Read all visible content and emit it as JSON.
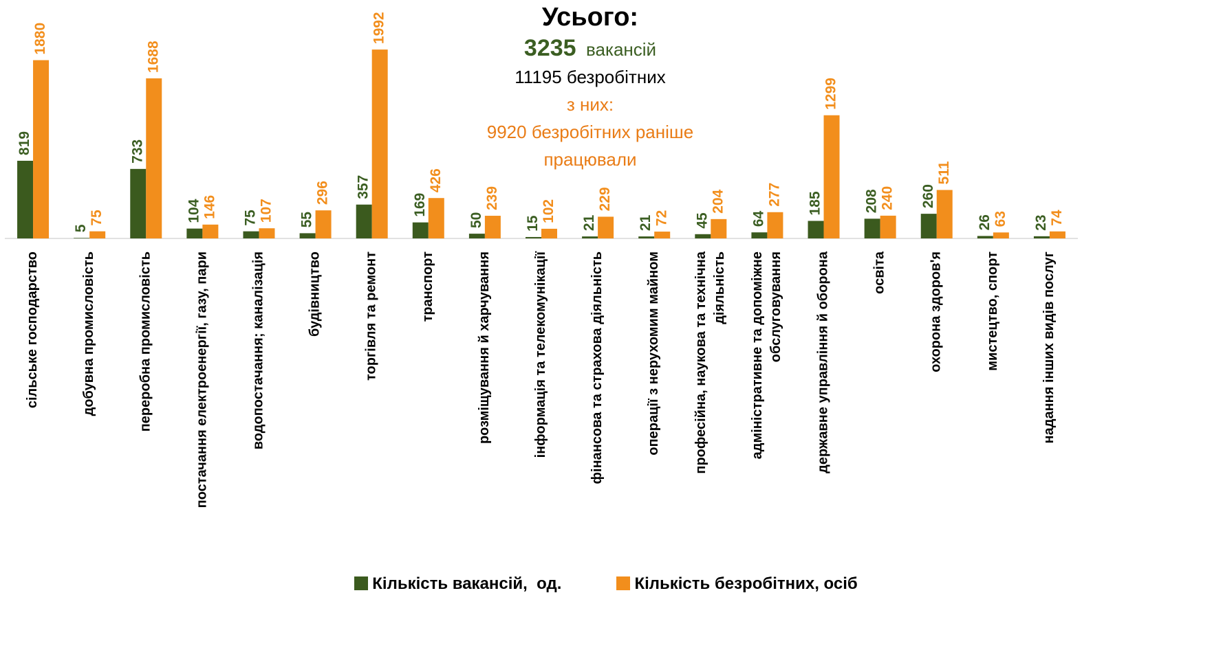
{
  "chart_data": {
    "type": "bar",
    "title": "Усього:",
    "annotations": [
      "3235",
      "вакансій",
      "11195 безробітних",
      "з них:",
      "9920 безробітних раніше працювали"
    ],
    "categories": [
      "сільське господарство",
      "добувна промисловість",
      "переробна промисловість",
      "постачання електроенергії, газу, пари",
      "водопостачання; каналізація",
      "будівництво",
      "торгівля та ремонт",
      "транспорт",
      "розміщування й харчування",
      "інформація та телекомунікації",
      "фінансова та страхова діяльність",
      "операції з нерухомим майном",
      "професійна, наукова та технічна діяльність",
      "адміністративне та допоміжне обслуговування",
      "державне управління й оборона",
      "освіта",
      "охорона здоров'я",
      "мистецтво, спорт",
      "надання інших видів послуг"
    ],
    "series": [
      {
        "name": "Кількість вакансій,  од.",
        "color": "#3b5a1e",
        "label_color": "#3b5e22",
        "values": [
          819,
          5,
          733,
          104,
          75,
          55,
          357,
          169,
          50,
          15,
          21,
          21,
          45,
          64,
          185,
          208,
          260,
          26,
          23
        ]
      },
      {
        "name": "Кількість безробітних, осіб",
        "color": "#f28e1c",
        "label_color": "#f28e1c",
        "values": [
          1880,
          75,
          1688,
          146,
          107,
          296,
          1992,
          426,
          239,
          102,
          229,
          72,
          204,
          277,
          1299,
          240,
          511,
          63,
          74
        ]
      }
    ],
    "ylim": [
      0,
      2000
    ],
    "legend": "bottom"
  }
}
